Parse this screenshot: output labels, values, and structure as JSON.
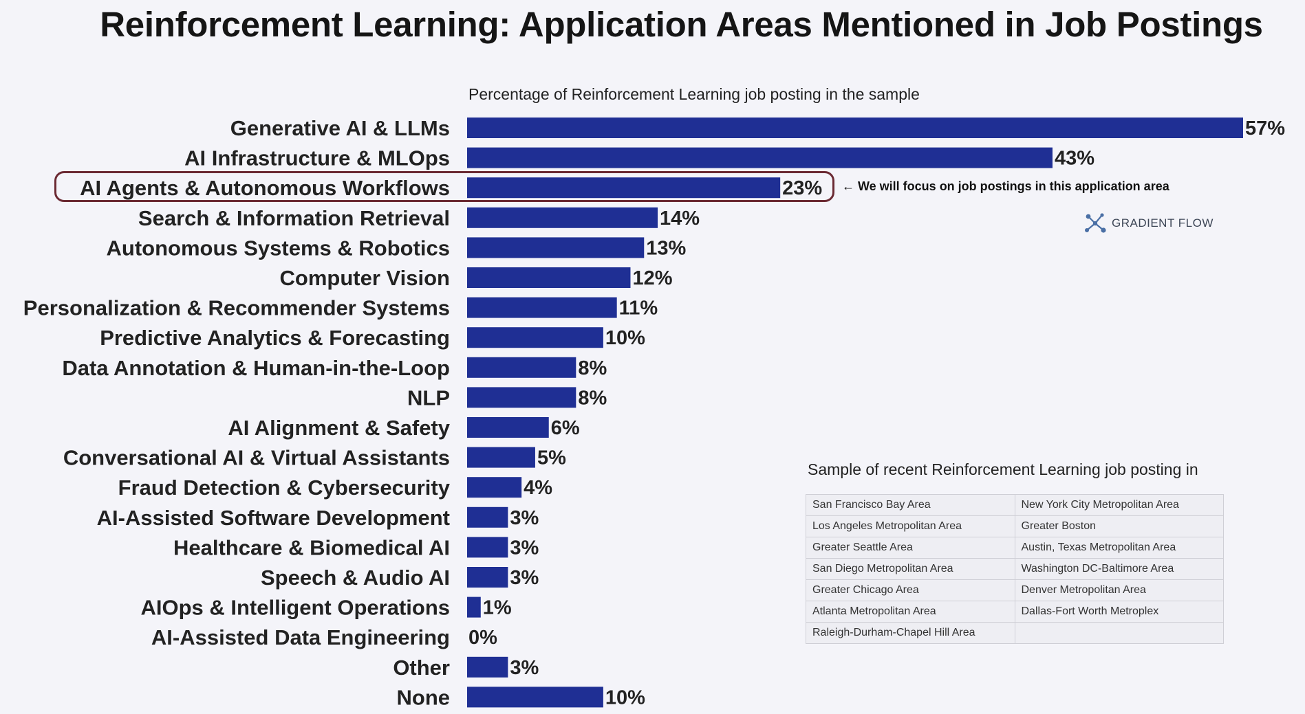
{
  "title": "Reinforcement Learning: Application Areas Mentioned in Job Postings",
  "annotation": "← We will focus on job postings in this application area",
  "logo": {
    "text": "GRADIENT FLOW",
    "icon": "network-nodes-icon",
    "color": "#4a6fa5"
  },
  "table": {
    "title": "Sample of recent Reinforcement Learning job posting in",
    "rows": [
      [
        "San Francisco Bay Area",
        "New York City Metropolitan Area"
      ],
      [
        "Los Angeles Metropolitan Area",
        "Greater Boston"
      ],
      [
        "Greater Seattle Area",
        "Austin, Texas Metropolitan Area"
      ],
      [
        "San Diego Metropolitan Area",
        "Washington DC-Baltimore Area"
      ],
      [
        "Greater Chicago Area",
        "Denver Metropolitan Area"
      ],
      [
        "Atlanta Metropolitan Area",
        "Dallas-Fort Worth Metroplex"
      ],
      [
        "Raleigh-Durham-Chapel Hill Area",
        ""
      ]
    ]
  },
  "chart_data": {
    "type": "bar",
    "orientation": "horizontal",
    "title": "Percentage of Reinforcement Learning job posting in the sample",
    "categories": [
      "Generative AI & LLMs",
      "AI Infrastructure & MLOps",
      "AI Agents & Autonomous Workflows",
      "Search & Information Retrieval",
      "Autonomous Systems & Robotics",
      "Computer Vision",
      "Personalization & Recommender Systems",
      "Predictive Analytics & Forecasting",
      "Data Annotation & Human-in-the-Loop",
      "NLP",
      "AI Alignment & Safety",
      "Conversational AI & Virtual Assistants",
      "Fraud Detection & Cybersecurity",
      "AI-Assisted Software Development",
      "Healthcare & Biomedical AI",
      "Speech & Audio AI",
      "AIOps & Intelligent Operations",
      "AI-Assisted Data Engineering",
      "Other",
      "None"
    ],
    "values": [
      57,
      43,
      23,
      14,
      13,
      12,
      11,
      10,
      8,
      8,
      6,
      5,
      4,
      3,
      3,
      3,
      1,
      0,
      3,
      10
    ],
    "value_labels": [
      "57%",
      "43%",
      "23%",
      "14%",
      "13%",
      "12%",
      "11%",
      "10%",
      "8%",
      "8%",
      "6%",
      "5%",
      "4%",
      "3%",
      "3%",
      "3%",
      "1%",
      "0%",
      "3%",
      "10%"
    ],
    "highlighted_category": "AI Agents & Autonomous Workflows",
    "xlim": [
      0,
      57
    ],
    "bar_color": "#1f2f94",
    "highlight_color": "#6b2a33",
    "grid": false,
    "legend": "none"
  }
}
